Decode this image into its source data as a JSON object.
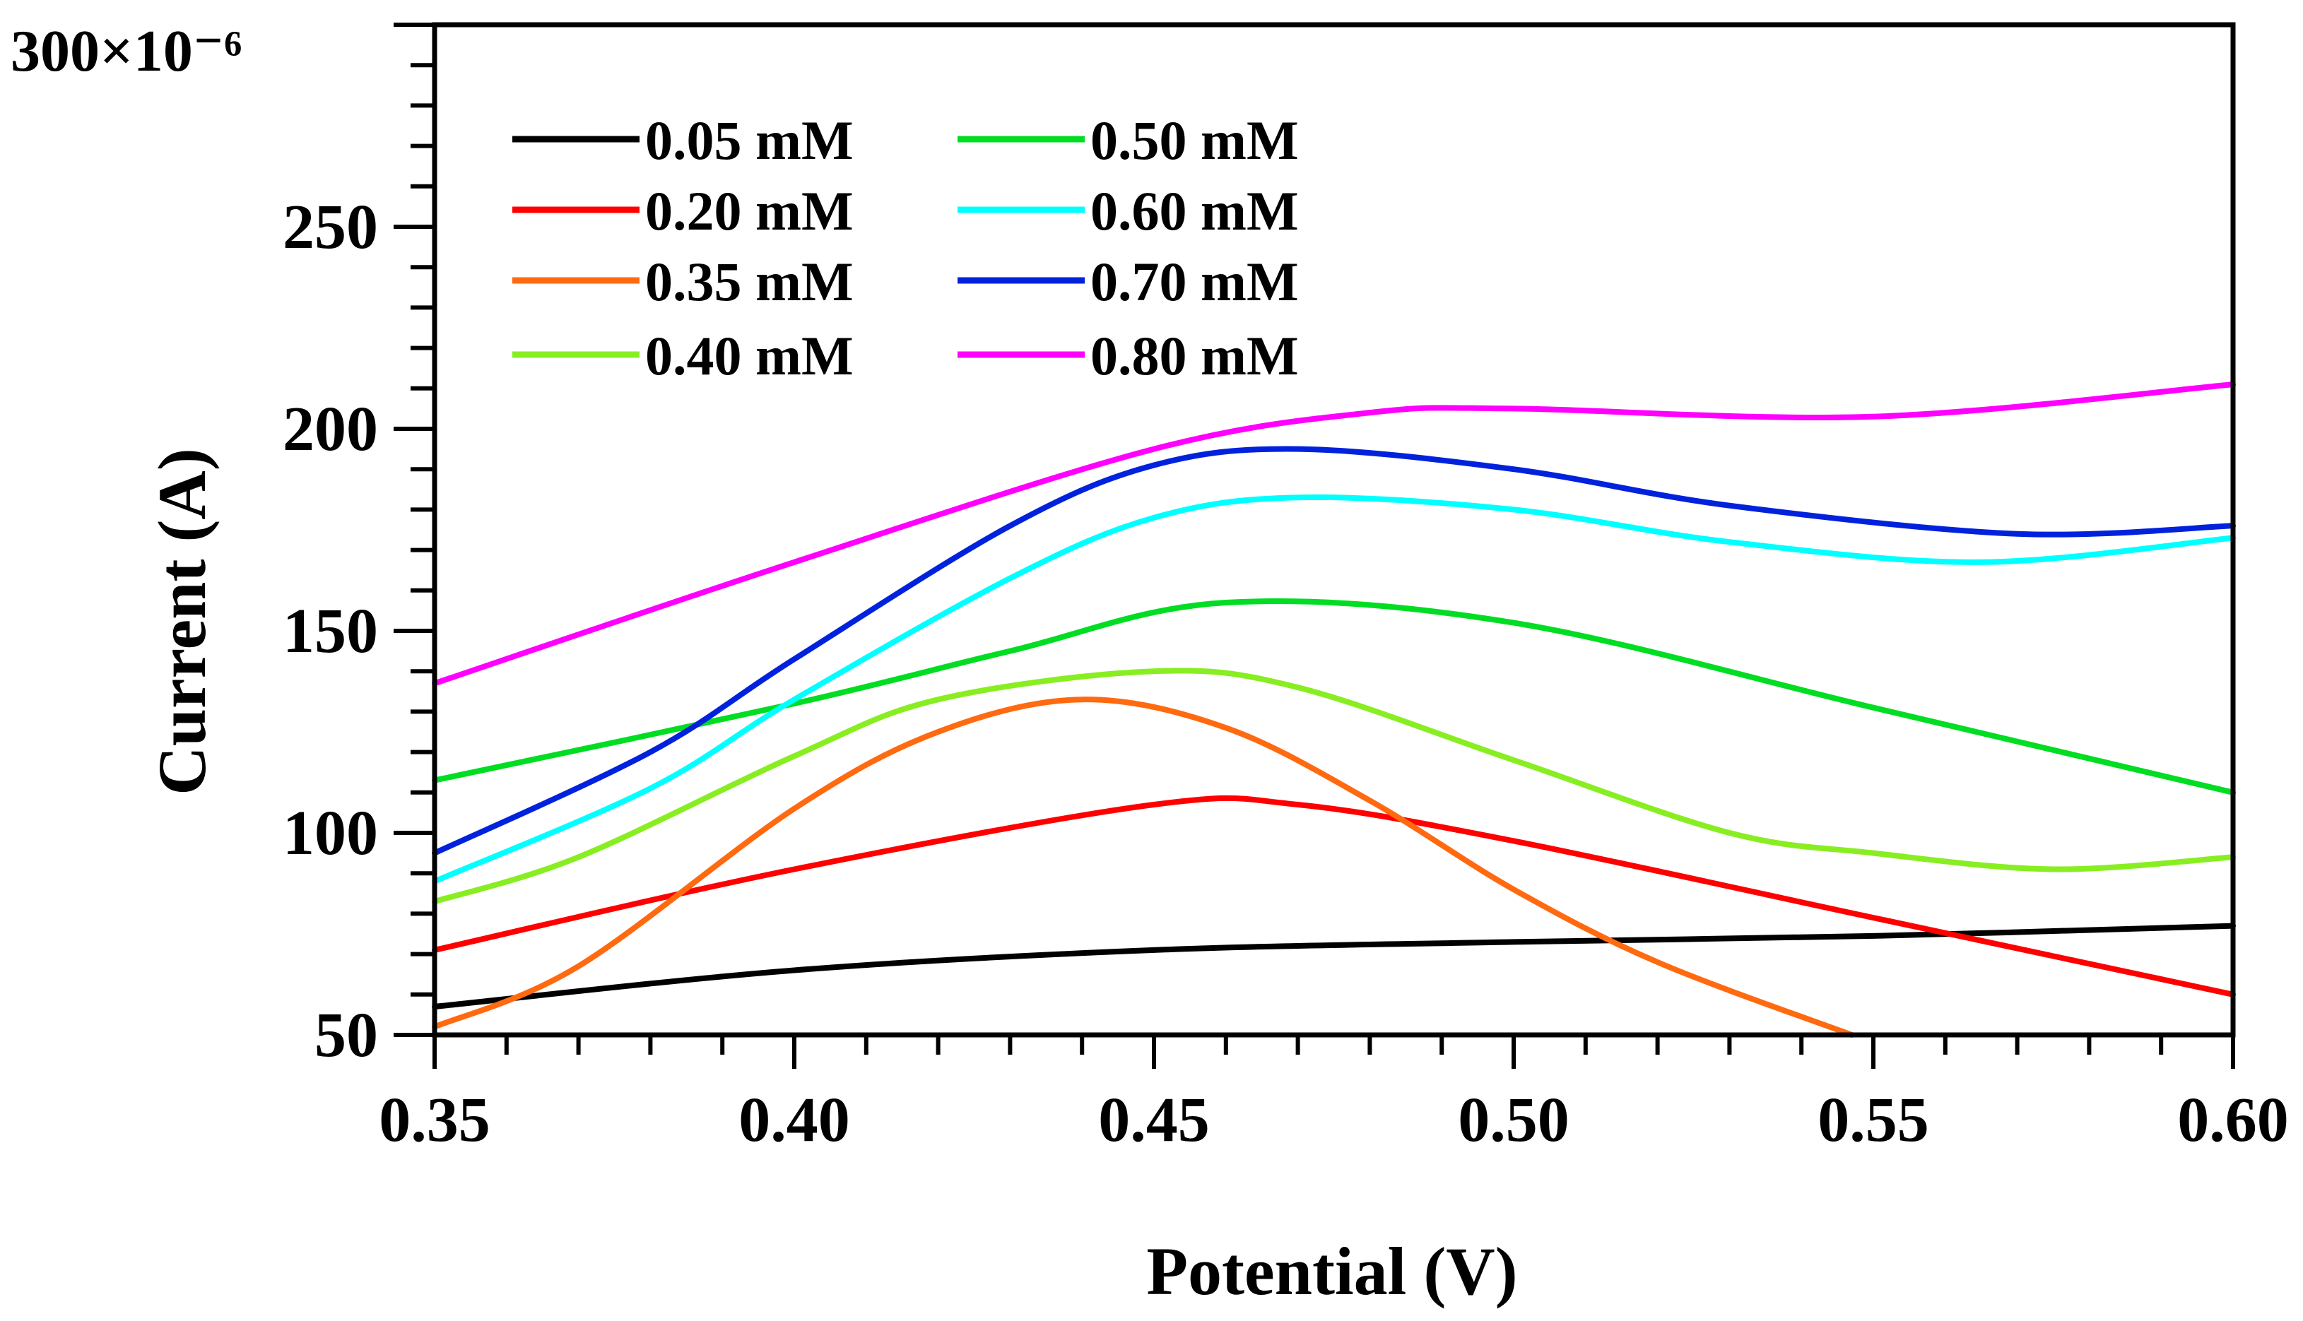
{
  "chart_data": {
    "type": "line",
    "title": "",
    "xlabel": "Potential (V)",
    "ylabel": "Current (A)",
    "y_scale_label": "300×10⁻⁶",
    "xlim": [
      0.35,
      0.6
    ],
    "ylim": [
      50,
      300
    ],
    "x_ticks": [
      0.35,
      0.4,
      0.45,
      0.5,
      0.55,
      0.6
    ],
    "x_tick_labels": [
      "0.35",
      "0.40",
      "0.45",
      "0.50",
      "0.55",
      "0.60"
    ],
    "y_ticks": [
      50,
      100,
      150,
      200,
      250
    ],
    "y_tick_labels": [
      "50",
      "100",
      "150",
      "200",
      "250"
    ],
    "grid": false,
    "legend_position": "top-left",
    "series": [
      {
        "name": "0.05 mM",
        "color": "#000000",
        "x": [
          0.35,
          0.4,
          0.45,
          0.5,
          0.55,
          0.6
        ],
        "y": [
          57,
          66,
          71,
          73,
          74.5,
          77
        ]
      },
      {
        "name": "0.20 mM",
        "color": "#ff0000",
        "x": [
          0.35,
          0.4,
          0.45,
          0.47,
          0.5,
          0.55,
          0.6
        ],
        "y": [
          71,
          91,
          107,
          107,
          98,
          79,
          60
        ]
      },
      {
        "name": "0.35 mM",
        "color": "#ff6a10",
        "x": [
          0.35,
          0.37,
          0.4,
          0.42,
          0.44,
          0.46,
          0.48,
          0.5,
          0.52,
          0.547
        ],
        "y": [
          52,
          67,
          106,
          125,
          133,
          126,
          108,
          86,
          68,
          50
        ]
      },
      {
        "name": "0.40 mM",
        "color": "#88ee22",
        "x": [
          0.35,
          0.37,
          0.4,
          0.42,
          0.45,
          0.47,
          0.5,
          0.53,
          0.55,
          0.575,
          0.6
        ],
        "y": [
          83,
          94,
          119,
          133,
          140,
          136,
          118,
          100,
          95,
          91,
          94
        ]
      },
      {
        "name": "0.50 mM",
        "color": "#00dd22",
        "x": [
          0.35,
          0.4,
          0.43,
          0.46,
          0.5,
          0.55,
          0.6
        ],
        "y": [
          113,
          132,
          145,
          157,
          152,
          131,
          110
        ]
      },
      {
        "name": "0.60 mM",
        "color": "#00ffff",
        "x": [
          0.35,
          0.38,
          0.4,
          0.43,
          0.45,
          0.47,
          0.5,
          0.53,
          0.565,
          0.6
        ],
        "y": [
          88,
          111,
          133,
          163,
          178,
          183,
          180,
          172,
          167,
          173
        ]
      },
      {
        "name": "0.70 mM",
        "color": "#0022dd",
        "x": [
          0.35,
          0.38,
          0.4,
          0.43,
          0.45,
          0.47,
          0.5,
          0.53,
          0.57,
          0.6
        ],
        "y": [
          95,
          120,
          143,
          176,
          191,
          195,
          190,
          181,
          174,
          176
        ]
      },
      {
        "name": "0.80 mM",
        "color": "#ff00ff",
        "x": [
          0.35,
          0.4,
          0.45,
          0.48,
          0.5,
          0.55,
          0.6
        ],
        "y": [
          137,
          167,
          195,
          204,
          205,
          203,
          211
        ]
      }
    ]
  }
}
